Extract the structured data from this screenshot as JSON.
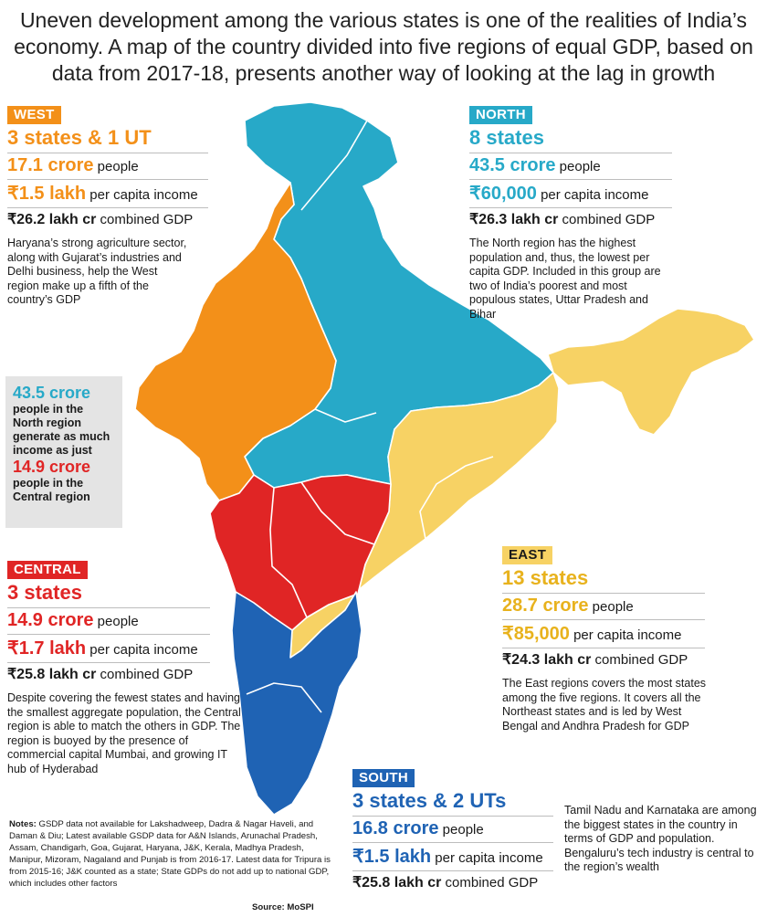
{
  "headline": "Uneven development among the various states is one of the realities of India’s economy. A map of the country divided into five regions of equal GDP, based on data from 2017-18, presents another way of looking at the lag in growth",
  "colors": {
    "west": "#f39019",
    "north": "#27a9c8",
    "east": "#f7d264",
    "central": "#e02525",
    "south": "#1f63b4"
  },
  "regions": {
    "west": {
      "tag": "WEST",
      "count": "3 states & 1 UT",
      "people_value": "17.1 crore",
      "people_label": " people",
      "income_value": "₹1.5 lakh",
      "income_label": " per capita income",
      "gdp_value": "₹26.2 lakh cr",
      "gdp_label": " combined GDP",
      "description": "Haryana’s strong agriculture sector, along with Gujarat’s industries and Delhi business, help the West region make up a fifth of the country’s GDP"
    },
    "north": {
      "tag": "NORTH",
      "count": "8 states",
      "people_value": "43.5 crore",
      "people_label": " people",
      "income_value": "₹60,000",
      "income_label": " per capita income",
      "gdp_value": "₹26.3 lakh cr",
      "gdp_label": " combined GDP",
      "description": "The North region has the highest population and, thus, the lowest per capita GDP. Included in this group are two of India’s poorest and most populous states, Uttar Pradesh and Bihar"
    },
    "east": {
      "tag": "EAST",
      "count": "13 states",
      "people_value": "28.7 crore",
      "people_label": " people",
      "income_value": "₹85,000",
      "income_label": " per capita income",
      "gdp_value": "₹24.3 lakh cr",
      "gdp_label": " combined GDP",
      "description": "The East regions covers the most states among the five regions. It covers all the Northeast states and is led by West Bengal and Andhra Pradesh for GDP"
    },
    "central": {
      "tag": "CENTRAL",
      "count": "3 states",
      "people_value": "14.9 crore",
      "people_label": " people",
      "income_value": "₹1.7 lakh",
      "income_label": " per capita income",
      "gdp_value": "₹25.8 lakh cr",
      "gdp_label": " combined GDP",
      "description": "Despite covering the fewest states and having the smallest aggregate population, the Central region is able to match the others in GDP. The region is buoyed by the presence of commercial capital Mumbai, and growing IT hub of Hyderabad"
    },
    "south": {
      "tag": "SOUTH",
      "count": "3 states & 2 UTs",
      "people_value": "16.8 crore",
      "people_label": " people",
      "income_value": "₹1.5 lakh",
      "income_label": " per capita income",
      "gdp_value": "₹25.8 lakh cr",
      "gdp_label": " combined GDP",
      "description": "Tamil Nadu and Karnataka are among the biggest states in the country in terms of GDP and population. Bengaluru’s tech industry is central to the region’s wealth"
    }
  },
  "callout": {
    "value1": "43.5 crore",
    "text1": "people in the North region generate as much income as just",
    "value2": "14.9 crore",
    "text2": "people in the Central region"
  },
  "notes_label": "Notes:",
  "notes_text": " GSDP data not available for Lakshadweep, Dadra & Nagar Haveli, and Daman & Diu; Latest available GSDP data for A&N Islands, Arunachal Pradesh, Assam, Chandigarh, Goa, Gujarat, Haryana, J&K, Kerala, Madhya Pradesh, Manipur, Mizoram, Nagaland and Punjab is from 2016-17. Latest data for Tripura is from 2015-16; J&K counted as a state; State GDPs do not add up to national GDP, which includes other factors",
  "source": "Source: MoSPI"
}
